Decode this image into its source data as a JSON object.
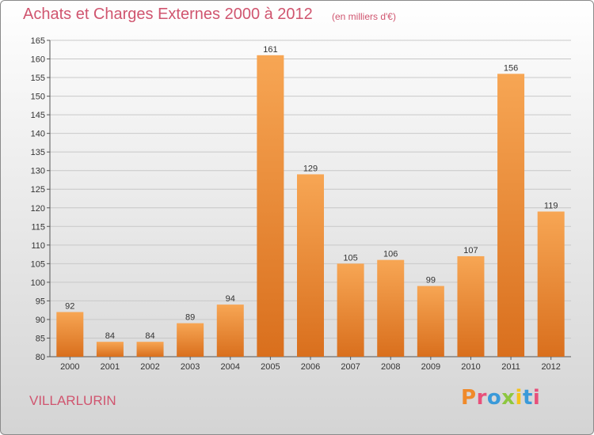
{
  "header": {
    "title": "Achats et Charges Externes 2000 à 2012",
    "subtitle": "(en milliers d'€)"
  },
  "footer": {
    "commune": "VILLARLURIN",
    "logo_text": "Proxiti"
  },
  "colors": {
    "title": "#d0556f",
    "bar_light": "#f7a654",
    "bar_dark": "#d96f1d",
    "grid": "#c8c8c8",
    "logo_letters": [
      "#f08a2a",
      "#e8507a",
      "#3a9ad9",
      "#8dc63f",
      "#f5c21b",
      "#3a9ad9",
      "#e8507a"
    ]
  },
  "chart_data": {
    "type": "bar",
    "title": "Achats et Charges Externes 2000 à 2012",
    "subtitle": "(en milliers d'€)",
    "xlabel": "",
    "ylabel": "",
    "categories": [
      "2000",
      "2001",
      "2002",
      "2003",
      "2004",
      "2005",
      "2006",
      "2007",
      "2008",
      "2009",
      "2010",
      "2011",
      "2012"
    ],
    "values": [
      92,
      84,
      84,
      89,
      94,
      161,
      129,
      105,
      106,
      99,
      107,
      156,
      119
    ],
    "ylim": [
      80,
      165
    ],
    "yticks": [
      80,
      85,
      90,
      95,
      100,
      105,
      110,
      115,
      120,
      125,
      130,
      135,
      140,
      145,
      150,
      155,
      160,
      165
    ],
    "grid": true,
    "data_labels": true
  }
}
